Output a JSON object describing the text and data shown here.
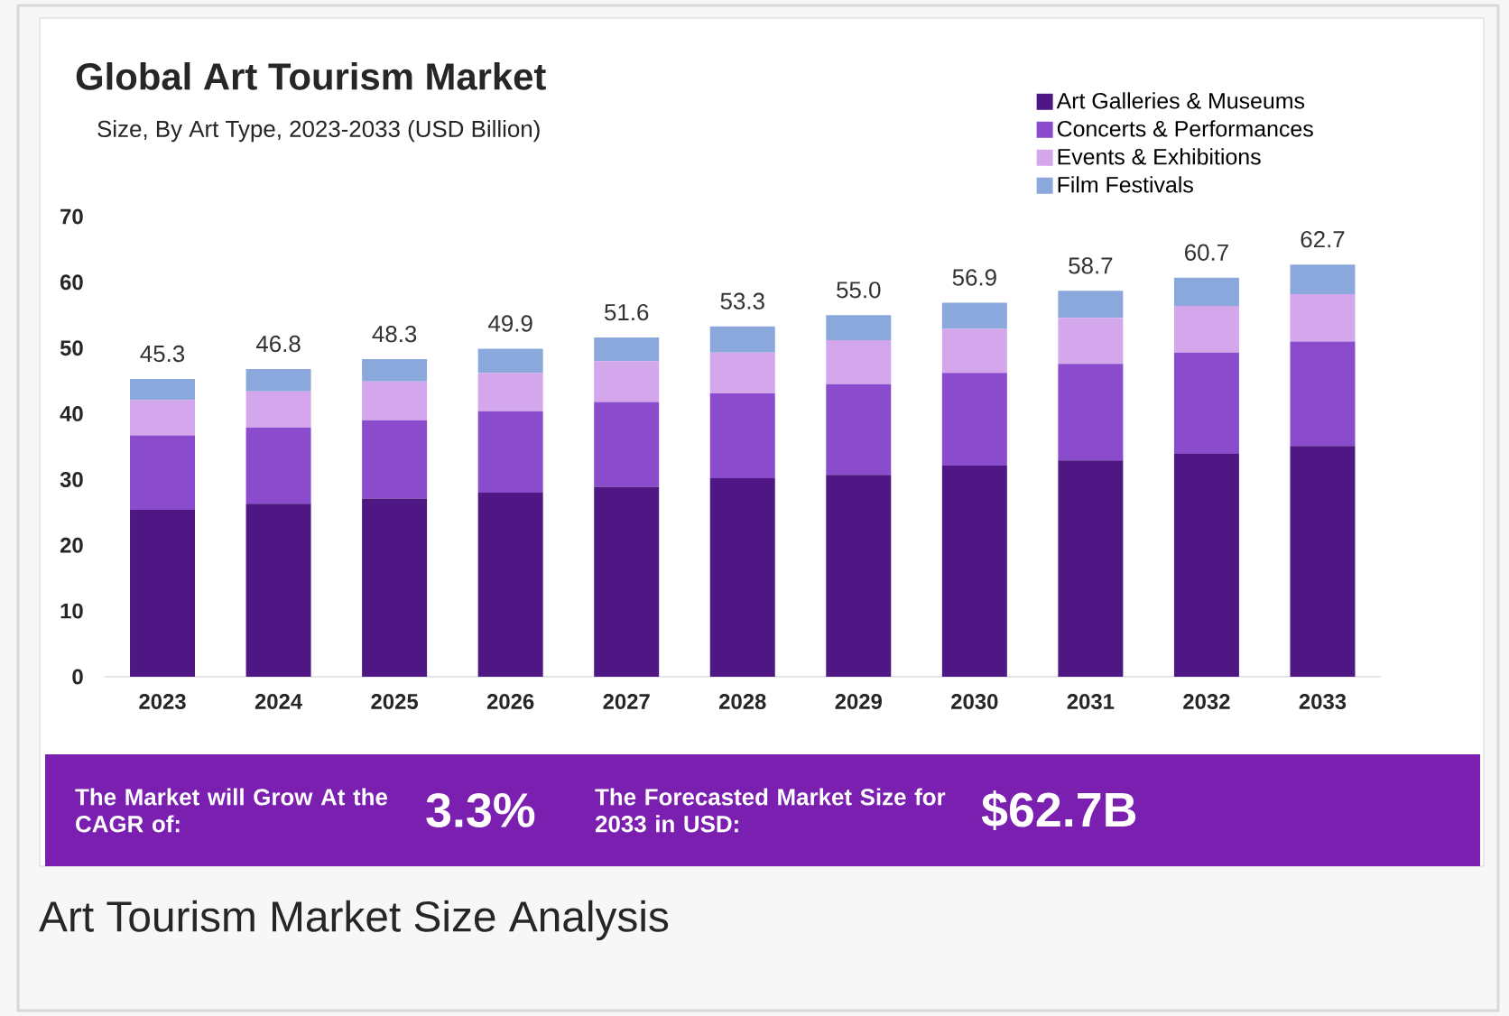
{
  "chart_data": {
    "type": "bar",
    "stacked": true,
    "title": "Global Art Tourism Market",
    "subtitle": "Size, By Art Type, 2023-2033 (USD Billion)",
    "categories": [
      "2023",
      "2024",
      "2025",
      "2026",
      "2027",
      "2028",
      "2029",
      "2030",
      "2031",
      "2032",
      "2033"
    ],
    "series": [
      {
        "name": "Art Galleries & Museums",
        "color": "#4e1783",
        "values": [
          25.4,
          26.3,
          27.1,
          28.0,
          28.9,
          30.2,
          30.7,
          32.1,
          32.9,
          33.9,
          35.1
        ]
      },
      {
        "name": "Concerts & Performances",
        "color": "#8a4ccc",
        "values": [
          11.3,
          11.6,
          11.9,
          12.4,
          12.9,
          12.9,
          13.8,
          14.1,
          14.7,
          15.4,
          15.9
        ]
      },
      {
        "name": "Events & Exhibitions",
        "color": "#d4a6ec",
        "values": [
          5.4,
          5.5,
          5.9,
          5.8,
          6.2,
          6.2,
          6.7,
          6.7,
          7.0,
          7.1,
          7.2
        ]
      },
      {
        "name": "Film Festivals",
        "color": "#8aa8dc",
        "values": [
          3.2,
          3.4,
          3.4,
          3.7,
          3.6,
          4.0,
          3.8,
          4.0,
          4.1,
          4.3,
          4.5
        ]
      }
    ],
    "totals": [
      "45.3",
      "46.8",
      "48.3",
      "49.9",
      "51.6",
      "53.3",
      "55.0",
      "56.9",
      "58.7",
      "60.7",
      "62.7"
    ],
    "ylim": [
      0,
      70
    ],
    "yticks": [
      0,
      10,
      20,
      30,
      40,
      50,
      60,
      70
    ],
    "legend": "top right",
    "annotations": [
      "The Market will Grow At the CAGR of:",
      "3.3%",
      "The Forecasted Market Size for 2033 in USD:",
      "$62.7B",
      "Art Tourism Market Size Analysis"
    ]
  }
}
